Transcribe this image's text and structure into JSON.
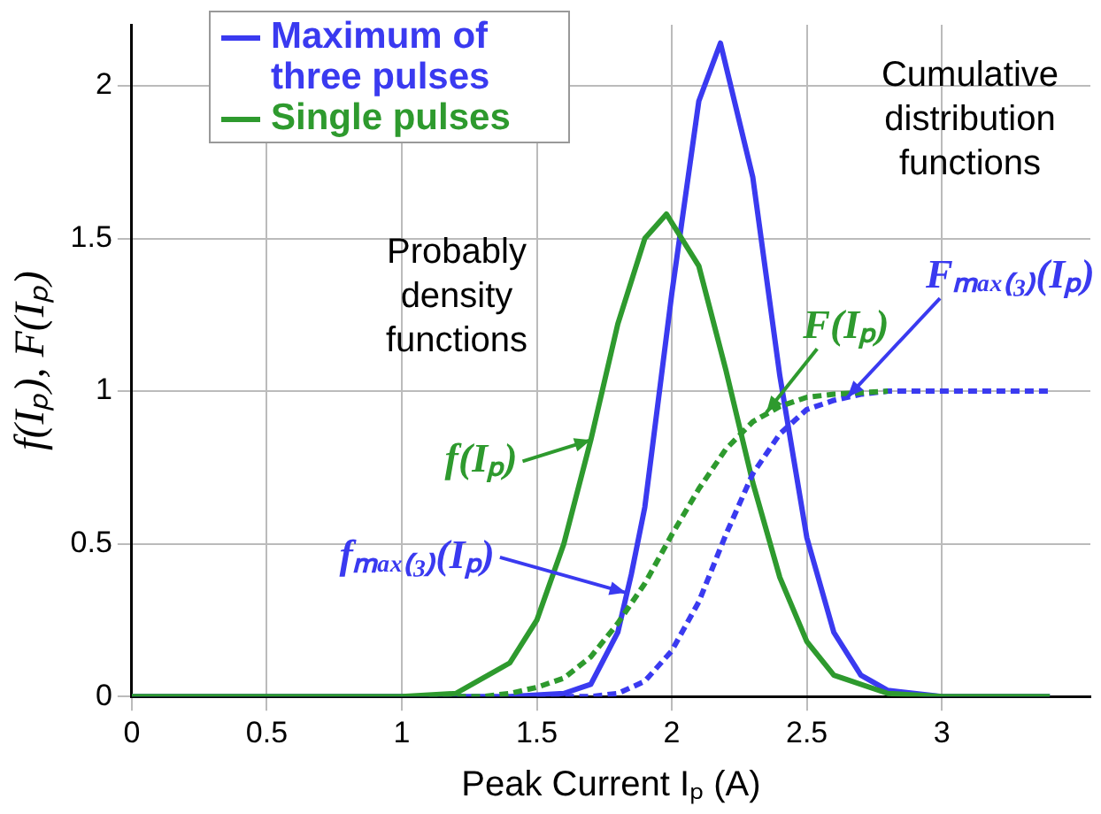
{
  "chart_data": {
    "type": "line",
    "xlabel": "Peak Current Iₚ (A)",
    "ylabel": "f(Iₚ), F(Iₚ)",
    "xlim": [
      0,
      3.55
    ],
    "xticks": [
      0,
      0.5,
      1,
      1.5,
      2,
      2.5,
      3
    ],
    "ylim": [
      0,
      2.2
    ],
    "yticks": [
      0,
      0.5,
      1,
      1.5,
      2
    ],
    "grid": true,
    "legend": "top left",
    "marker": "none",
    "series": [
      {
        "name": "Maximum of three pulses",
        "color": "#3a3af0",
        "line_style": "solid",
        "x": [
          0,
          1.4,
          1.6,
          1.7,
          1.8,
          1.85,
          1.9,
          2.0,
          2.1,
          2.18,
          2.3,
          2.4,
          2.5,
          2.6,
          2.7,
          2.8,
          3.0,
          3.4
        ],
        "values": [
          0,
          0,
          0.01,
          0.04,
          0.21,
          0.4,
          0.62,
          1.32,
          1.95,
          2.14,
          1.7,
          1.05,
          0.52,
          0.21,
          0.07,
          0.02,
          0,
          0
        ]
      },
      {
        "name": "Single pulses",
        "color": "#2e9a2e",
        "line_style": "solid",
        "x": [
          0,
          1.0,
          1.2,
          1.4,
          1.5,
          1.6,
          1.7,
          1.8,
          1.9,
          1.98,
          2.1,
          2.2,
          2.3,
          2.4,
          2.5,
          2.6,
          2.8,
          3.0,
          3.4
        ],
        "values": [
          0,
          0,
          0.01,
          0.11,
          0.25,
          0.5,
          0.84,
          1.22,
          1.5,
          1.58,
          1.41,
          1.07,
          0.7,
          0.39,
          0.18,
          0.07,
          0.01,
          0,
          0
        ]
      },
      {
        "color": "#3a3af0",
        "line_style": "dashed",
        "x": [
          1.5,
          1.7,
          1.8,
          1.9,
          2.0,
          2.1,
          2.2,
          2.3,
          2.4,
          2.5,
          2.6,
          2.7,
          2.8,
          3.4
        ],
        "values": [
          0,
          0,
          0.01,
          0.05,
          0.15,
          0.31,
          0.53,
          0.73,
          0.86,
          0.94,
          0.97,
          0.99,
          1,
          1
        ]
      },
      {
        "color": "#2e9a2e",
        "line_style": "dashed",
        "x": [
          1.1,
          1.3,
          1.4,
          1.5,
          1.6,
          1.7,
          1.8,
          1.9,
          2.0,
          2.1,
          2.2,
          2.3,
          2.4,
          2.5,
          2.6,
          2.8
        ],
        "values": [
          0,
          0,
          0.01,
          0.03,
          0.06,
          0.13,
          0.24,
          0.37,
          0.53,
          0.68,
          0.81,
          0.9,
          0.95,
          0.98,
          0.99,
          1
        ]
      }
    ],
    "annotations": [
      "Cumulative\ndistribution\nfunctions",
      "Probably\ndensity\nfunctions",
      {
        "text": "f(Iₚ)",
        "x": 1.7,
        "y": 0.84
      },
      {
        "text": "fₘₐₓ₍₃₎(Iₚ)",
        "x": 1.83,
        "y": 0.34
      },
      {
        "text": "F(Iₚ)",
        "x": 2.35,
        "y": 0.93
      },
      {
        "text": "Fₘₐₓ₍₃₎(Iₚ)",
        "x": 2.65,
        "y": 0.98
      }
    ]
  }
}
